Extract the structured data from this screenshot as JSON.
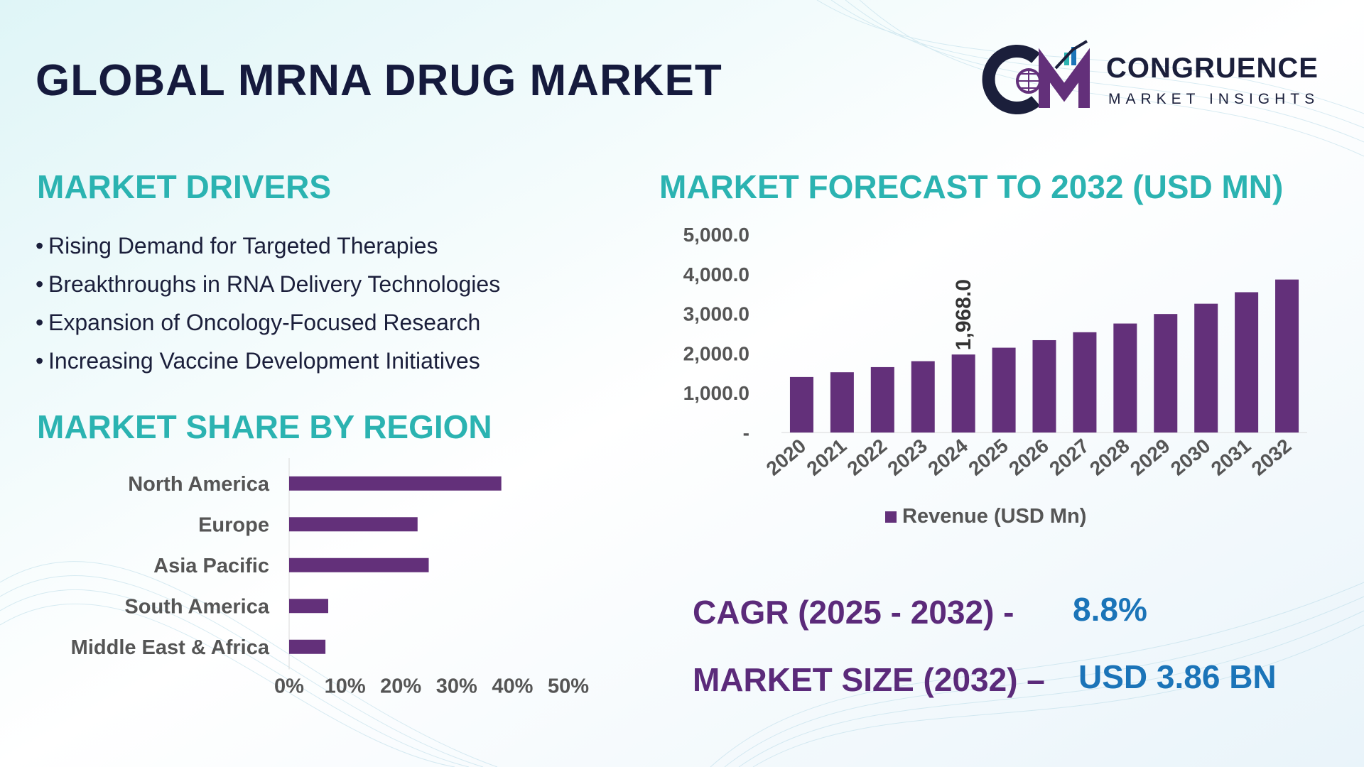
{
  "title": "GLOBAL MRNA DRUG MARKET",
  "logo": {
    "name": "CONGRUENCE",
    "subtitle": "MARKET INSIGHTS",
    "monogram": "CM"
  },
  "drivers": {
    "heading": "MARKET DRIVERS",
    "items": [
      "Rising Demand for Targeted Therapies",
      "Breakthroughs in RNA Delivery Technologies",
      "Expansion of Oncology-Focused Research",
      "Increasing Vaccine Development Initiatives"
    ]
  },
  "region": {
    "heading": "MARKET SHARE BY REGION"
  },
  "forecast": {
    "heading": "MARKET FORECAST TO 2032 (USD MN)"
  },
  "kpis": {
    "cagr_label": "CAGR (2025 - 2032) -",
    "cagr_value": "8.8%",
    "size_label": "MARKET SIZE (2032) –",
    "size_value": "USD 3.86 BN"
  },
  "colors": {
    "bar": "#63307a",
    "heading": "#2bb3b1",
    "title": "#151a3d",
    "kpi_label": "#5b2a7a",
    "kpi_value": "#1b74b8",
    "axis_text": "#555555"
  },
  "chart_data": [
    {
      "type": "bar",
      "orientation": "horizontal",
      "categories": [
        "North America",
        "Europe",
        "Asia Pacific",
        "South America",
        "Middle East & Africa"
      ],
      "values": [
        38,
        23,
        25,
        7,
        6.5
      ],
      "xticks": [
        "0%",
        "10%",
        "20%",
        "30%",
        "40%",
        "50%"
      ],
      "xlim": [
        0,
        50
      ],
      "grid": false
    },
    {
      "type": "bar",
      "categories": [
        "2020",
        "2021",
        "2022",
        "2023",
        "2024",
        "2025",
        "2026",
        "2027",
        "2028",
        "2029",
        "2030",
        "2031",
        "2032"
      ],
      "series": [
        {
          "name": "Revenue (USD Mn)",
          "values": [
            1400,
            1520,
            1650,
            1800,
            1968,
            2140,
            2330,
            2530,
            2750,
            2990,
            3250,
            3540,
            3860
          ]
        }
      ],
      "data_labels": [
        {
          "index": 4,
          "text": "1,968.0"
        }
      ],
      "yticks": [
        "-",
        "1,000.0",
        "2,000.0",
        "3,000.0",
        "4,000.0",
        "5,000.0"
      ],
      "ylim": [
        0,
        5000
      ],
      "legend": "bottom",
      "grid": false
    }
  ]
}
